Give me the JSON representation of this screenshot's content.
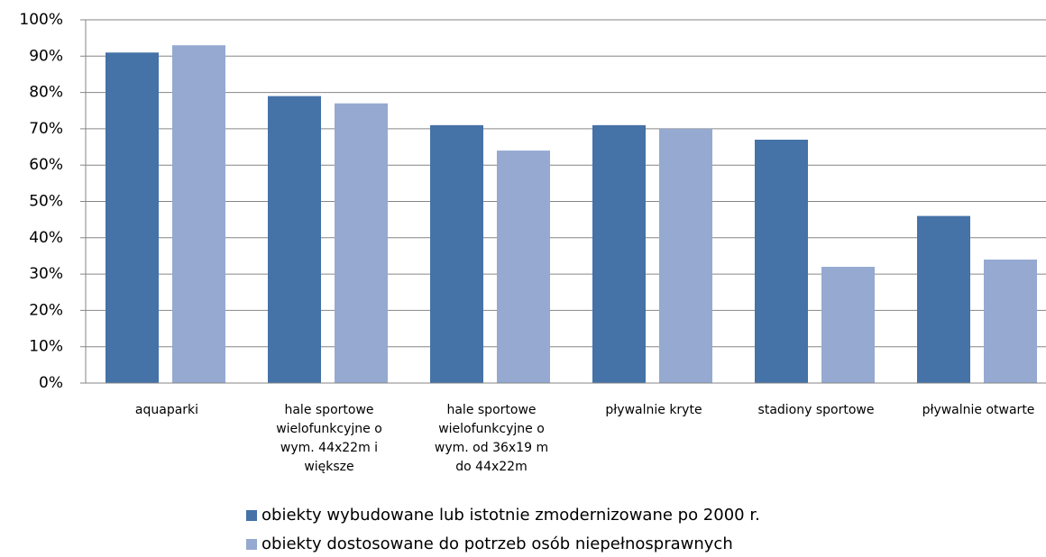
{
  "chart_data": {
    "type": "bar",
    "categories": [
      "aquaparki",
      "hale sportowe wielofunkcyjne o wym. 44x22m i większe",
      "hale sportowe wielofunkcyjne o wym. od 36x19 m do 44x22m",
      "pływalnie kryte",
      "stadiony sportowe",
      "pływalnie otwarte"
    ],
    "series": [
      {
        "name": "obiekty wybudowane lub istotnie zmodernizowane po 2000 r.",
        "color": "#4572a7",
        "values": [
          91,
          79,
          71,
          71,
          67,
          46
        ]
      },
      {
        "name": "obiekty dostosowane do potrzeb osób niepełnosprawnych",
        "color": "#95a9d1",
        "values": [
          93,
          77,
          64,
          70,
          32,
          34
        ]
      }
    ],
    "ylim": [
      0,
      100
    ],
    "yticks": [
      {
        "value": 0,
        "label": "0%"
      },
      {
        "value": 10,
        "label": "10%"
      },
      {
        "value": 20,
        "label": "20%"
      },
      {
        "value": 30,
        "label": "30%"
      },
      {
        "value": 40,
        "label": "40%"
      },
      {
        "value": 50,
        "label": "50%"
      },
      {
        "value": 60,
        "label": "60%"
      },
      {
        "value": 70,
        "label": "70%"
      },
      {
        "value": 80,
        "label": "80%"
      },
      {
        "value": 90,
        "label": "90%"
      },
      {
        "value": 100,
        "label": "100%"
      }
    ],
    "grid": true,
    "legend": "bottom"
  }
}
